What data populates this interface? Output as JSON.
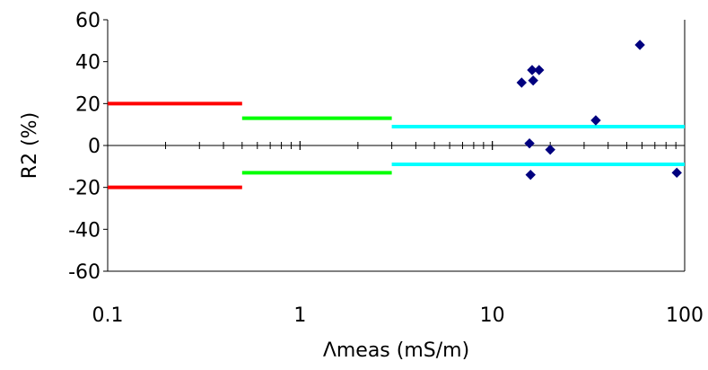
{
  "chart_data": {
    "type": "scatter",
    "title": "",
    "xlabel": "Λmeas (mS/m)",
    "ylabel": "R2 (%)",
    "x_scale": "log",
    "xlim": [
      0.1,
      100
    ],
    "ylim": [
      -60,
      60
    ],
    "x_ticks": [
      {
        "value": 0.1,
        "label": "0.1"
      },
      {
        "value": 1,
        "label": "1"
      },
      {
        "value": 10,
        "label": "10"
      },
      {
        "value": 100,
        "label": "100"
      }
    ],
    "y_ticks": [
      {
        "value": 60,
        "label": "60"
      },
      {
        "value": 40,
        "label": "40"
      },
      {
        "value": 20,
        "label": "20"
      },
      {
        "value": 0,
        "label": "0"
      },
      {
        "value": -20,
        "label": "-20"
      },
      {
        "value": -40,
        "label": "-40"
      },
      {
        "value": -60,
        "label": "-60"
      }
    ],
    "grid": false,
    "legend": "none",
    "series": [
      {
        "kind": "scatter",
        "color": "#00007f",
        "marker": "diamond",
        "points": [
          {
            "x": 14.2,
            "y": 30
          },
          {
            "x": 15.6,
            "y": 1
          },
          {
            "x": 15.8,
            "y": -14
          },
          {
            "x": 16.1,
            "y": 36
          },
          {
            "x": 16.3,
            "y": 31
          },
          {
            "x": 17.5,
            "y": 36
          },
          {
            "x": 20.0,
            "y": -2
          },
          {
            "x": 34.5,
            "y": 12
          },
          {
            "x": 58.5,
            "y": 48
          },
          {
            "x": 91.0,
            "y": -13
          }
        ]
      },
      {
        "kind": "step",
        "color": "#ff0000",
        "x": [
          0.1,
          0.5
        ],
        "y": [
          20,
          20
        ]
      },
      {
        "kind": "step",
        "color": "#ff0000",
        "x": [
          0.1,
          0.5
        ],
        "y": [
          -20,
          -20
        ]
      },
      {
        "kind": "step",
        "color": "#00ff00",
        "x": [
          0.5,
          3
        ],
        "y": [
          13,
          13
        ]
      },
      {
        "kind": "step",
        "color": "#00ff00",
        "x": [
          0.5,
          3
        ],
        "y": [
          -13,
          -13
        ]
      },
      {
        "kind": "step",
        "color": "#00ffff",
        "x": [
          3,
          100
        ],
        "y": [
          9,
          9
        ]
      },
      {
        "kind": "step",
        "color": "#00ffff",
        "x": [
          3,
          100
        ],
        "y": [
          -9,
          -9
        ]
      }
    ]
  }
}
